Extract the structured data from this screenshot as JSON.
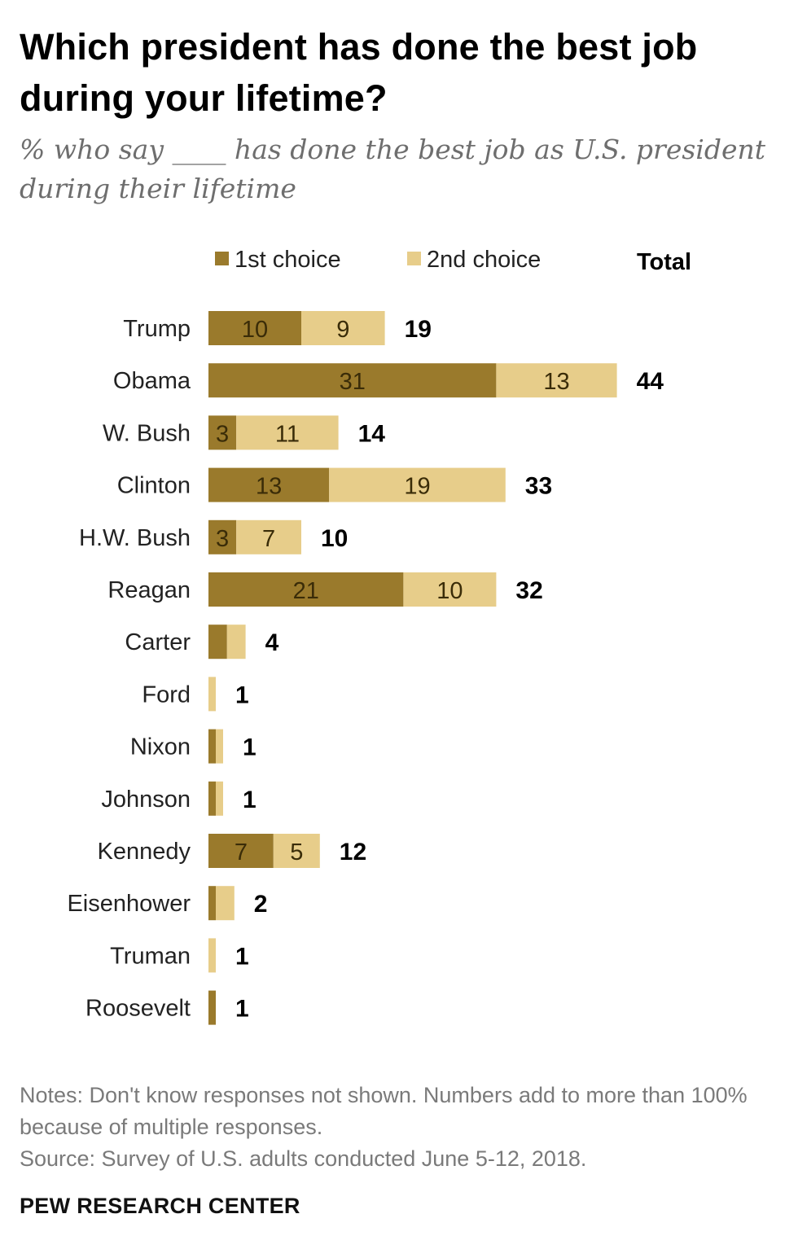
{
  "title": "Which president has done the best job during your lifetime?",
  "subtitle": "% who say ____ has done the best job as U.S. president during their lifetime",
  "notes": "Notes: Don't know responses not shown. Numbers add to more than 100% because of multiple responses.",
  "source": "Source: Survey of U.S. adults conducted June 5-12, 2018.",
  "brand": "PEW RESEARCH CENTER",
  "colors": {
    "first": "#9a7a2c",
    "second": "#e7cd8a"
  },
  "chart_data": {
    "type": "bar",
    "orientation": "horizontal",
    "stacked": true,
    "categories": [
      "Trump",
      "Obama",
      "W. Bush",
      "Clinton",
      "H.W. Bush",
      "Reagan",
      "Carter",
      "Ford",
      "Nixon",
      "Johnson",
      "Kennedy",
      "Eisenhower",
      "Truman",
      "Roosevelt"
    ],
    "series": [
      {
        "name": "1st choice",
        "values": [
          10,
          31,
          3,
          13,
          3,
          21,
          2,
          0,
          1,
          1,
          7,
          1,
          0,
          1
        ]
      },
      {
        "name": "2nd choice",
        "values": [
          9,
          13,
          11,
          19,
          7,
          10,
          2,
          1,
          1,
          1,
          5,
          2,
          1,
          0
        ]
      }
    ],
    "segment_labels": [
      [
        "10",
        "9"
      ],
      [
        "31",
        "13"
      ],
      [
        "3",
        "11"
      ],
      [
        "13",
        "19"
      ],
      [
        "3",
        "7"
      ],
      [
        "21",
        "10"
      ],
      [
        "",
        ""
      ],
      [
        "",
        ""
      ],
      [
        "",
        ""
      ],
      [
        "",
        ""
      ],
      [
        "7",
        "5"
      ],
      [
        "",
        ""
      ],
      [
        "",
        ""
      ],
      [
        "",
        ""
      ]
    ],
    "totals_header": "Total",
    "totals": [
      19,
      44,
      14,
      33,
      10,
      32,
      4,
      1,
      1,
      1,
      12,
      2,
      1,
      1
    ],
    "legend_position": "top",
    "grid": false
  }
}
